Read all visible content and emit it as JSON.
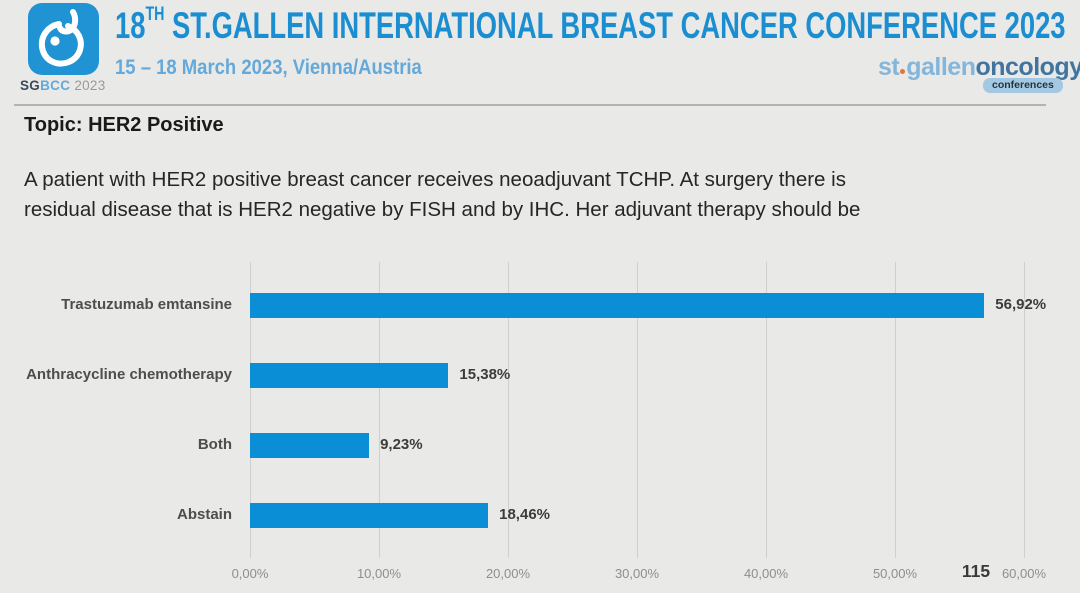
{
  "header": {
    "logo_badge": {
      "sg": "SG",
      "bcc": "BCC",
      "year": " 2023"
    },
    "title": {
      "number": "18",
      "ordinal": "TH",
      "rest": " ST.GALLEN INTERNATIONAL BREAST CANCER CONFERENCE 2023"
    },
    "subtitle": "15 – 18 March 2023, Vienna/Austria",
    "brand": {
      "st": "st",
      "gallen": "gallen",
      "oncology": "oncology",
      "conferences": "conferences"
    }
  },
  "topic": "Topic: HER2 Positive",
  "question": {
    "line1": "A patient with HER2 positive breast cancer receives neoadjuvant TCHP. At surgery there is",
    "line2": "residual disease that is HER2 negative by FISH and by IHC. Her adjuvant therapy should be"
  },
  "chart_data": {
    "type": "bar",
    "orientation": "horizontal",
    "title": "",
    "xlabel": "",
    "ylabel": "",
    "categories": [
      "Trastuzumab emtansine",
      "Anthracycline chemotherapy",
      "Both",
      "Abstain"
    ],
    "values": [
      56.92,
      15.38,
      9.23,
      18.46
    ],
    "value_labels": [
      "56,92%",
      "15,38%",
      "9,23%",
      "18,46%"
    ],
    "xlim": [
      0,
      60
    ],
    "x_ticks": [
      0,
      10,
      20,
      30,
      40,
      50,
      60
    ],
    "x_tick_labels": [
      "0,00%",
      "10,00%",
      "20,00%",
      "30,00%",
      "40,00%",
      "50,00%",
      "60,00%"
    ],
    "grid": true,
    "legend": "none",
    "bar_color": "#0a8fd6",
    "respondents": "115"
  },
  "colors": {
    "background": "#e9e9e7",
    "accent_blue": "#1b8ed2",
    "light_blue": "#64a9d9",
    "bar_blue": "#0a8fd6",
    "divider_gray": "#b3b3b3",
    "axis_gray": "#8e8e8e"
  }
}
